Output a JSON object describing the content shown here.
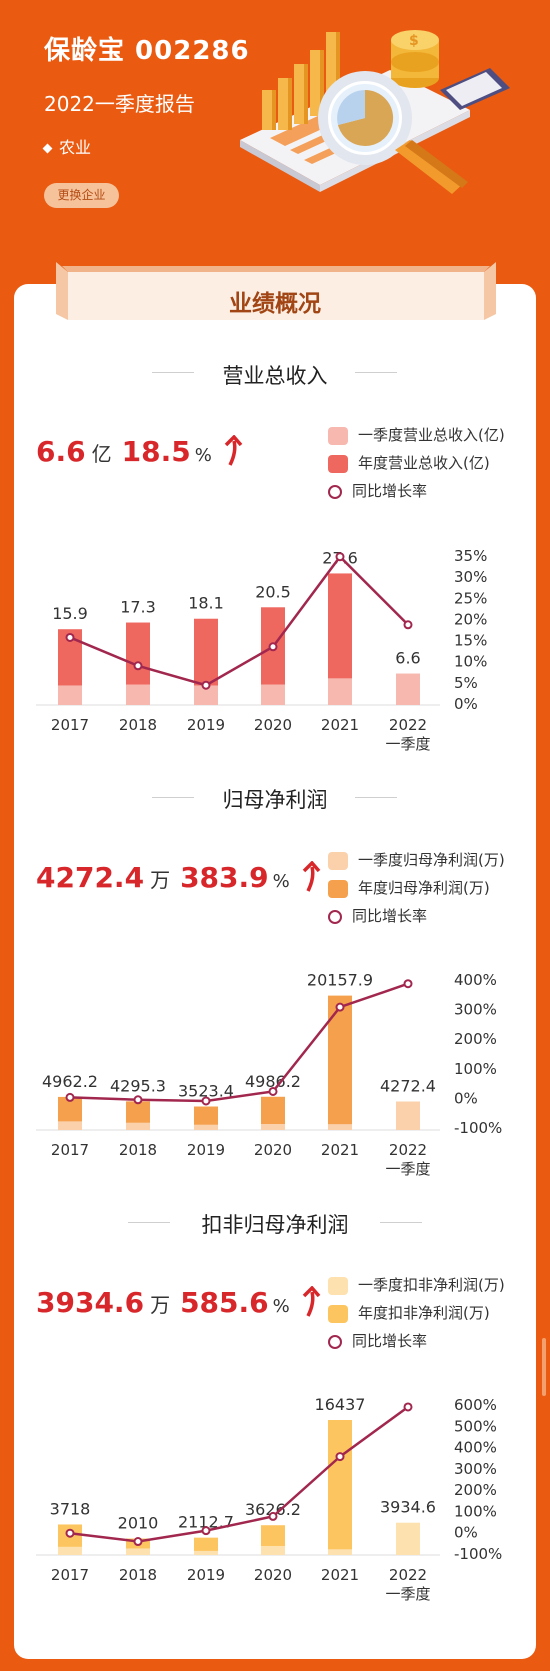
{
  "header": {
    "title": "保龄宝 002286",
    "report": "2022一季度报告",
    "industry": "农业",
    "switch_button": "更换企业"
  },
  "overview_title": "业绩概况",
  "colors": {
    "brand": "#ea5a10",
    "accent_red": "#d8272a",
    "rate_line": "#a2274e"
  },
  "sections": [
    {
      "title": "营业总收入",
      "kpi_value": "6.6",
      "kpi_unit": "亿",
      "kpi_rate": "18.5",
      "kpi_rate_unit": "%",
      "legend": [
        "一季度营业总收入(亿)",
        "年度营业总收入(亿)",
        "同比增长率"
      ],
      "colors": {
        "q": "#f7b8b0",
        "annual": "#ee6860"
      }
    },
    {
      "title": "归母净利润",
      "kpi_value": "4272.4",
      "kpi_unit": "万",
      "kpi_rate": "383.9",
      "kpi_rate_unit": "%",
      "legend": [
        "一季度归母净利润(万)",
        "年度归母净利润(万)",
        "同比增长率"
      ],
      "colors": {
        "q": "#fbd1ac",
        "annual": "#f5a04c"
      }
    },
    {
      "title": "扣非归母净利润",
      "kpi_value": "3934.6",
      "kpi_unit": "万",
      "kpi_rate": "585.6",
      "kpi_rate_unit": "%",
      "legend": [
        "一季度扣非净利润(万)",
        "年度扣非净利润(万)",
        "同比增长率"
      ],
      "colors": {
        "q": "#fde2b0",
        "annual": "#fdc560"
      }
    }
  ],
  "chart_data": [
    {
      "type": "bar",
      "categories": [
        "2017",
        "2018",
        "2019",
        "2020",
        "2021",
        "2022\n一季度"
      ],
      "series": [
        {
          "name": "年度营业总收入(亿)",
          "values": [
            15.9,
            17.3,
            18.1,
            20.5,
            27.6,
            null
          ]
        },
        {
          "name": "一季度营业总收入(亿)",
          "values": [
            4.1,
            4.3,
            4.1,
            4.3,
            5.6,
            6.6
          ]
        },
        {
          "name": "同比增长率",
          "type": "line",
          "values": [
            15.5,
            8.8,
            4.2,
            13.3,
            34.6,
            18.5
          ]
        }
      ],
      "bar_labels": [
        "15.9",
        "17.3",
        "18.1",
        "20.5",
        "27.6",
        "6.6"
      ],
      "ylim": [
        0,
        30
      ],
      "y2_ticks": [
        "35%",
        "30%",
        "25%",
        "20%",
        "15%",
        "10%",
        "5%",
        "0%"
      ],
      "y2lim": [
        0,
        35
      ]
    },
    {
      "type": "bar",
      "categories": [
        "2017",
        "2018",
        "2019",
        "2020",
        "2021",
        "2022\n一季度"
      ],
      "series": [
        {
          "name": "年度归母净利润(万)",
          "values": [
            4962.2,
            4295.3,
            3523.4,
            4986.2,
            20157.9,
            null
          ]
        },
        {
          "name": "一季度归母净利润(万)",
          "values": [
            1300,
            1100,
            800,
            900,
            880,
            4272.4
          ]
        },
        {
          "name": "同比增长率",
          "type": "line",
          "values": [
            0,
            -8,
            -12,
            20,
            305,
            384
          ]
        }
      ],
      "bar_labels": [
        "4962.2",
        "4295.3",
        "3523.4",
        "4986.2",
        "20157.9",
        "4272.4"
      ],
      "ylim": [
        0,
        21000
      ],
      "y2_ticks": [
        "400%",
        "300%",
        "200%",
        "100%",
        "0%",
        "-100%"
      ],
      "y2lim": [
        -100,
        400
      ]
    },
    {
      "type": "bar",
      "categories": [
        "2017",
        "2018",
        "2019",
        "2020",
        "2021",
        "2022\n一季度"
      ],
      "series": [
        {
          "name": "年度扣非净利润(万)",
          "values": [
            3718,
            2010,
            2112.7,
            3626.2,
            16437,
            null
          ]
        },
        {
          "name": "一季度扣非净利润(万)",
          "values": [
            1000,
            800,
            500,
            1100,
            700,
            3934.6
          ]
        },
        {
          "name": "同比增长率",
          "type": "line",
          "values": [
            -7,
            -46,
            5,
            72,
            353,
            586
          ]
        }
      ],
      "bar_labels": [
        "3718",
        "2010",
        "2112.7",
        "3626.2",
        "16437",
        "3934.6"
      ],
      "ylim": [
        0,
        16437
      ],
      "y2_ticks": [
        "600%",
        "500%",
        "400%",
        "300%",
        "200%",
        "100%",
        "0%",
        "-100%"
      ],
      "y2lim": [
        -100,
        600
      ]
    }
  ]
}
